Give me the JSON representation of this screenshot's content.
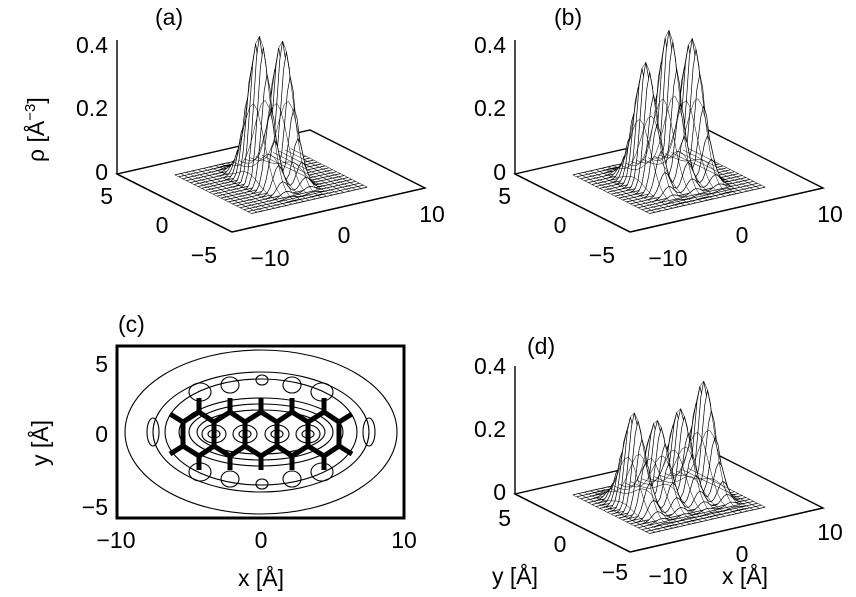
{
  "panels": {
    "a": {
      "label": "(a)"
    },
    "b": {
      "label": "(b)"
    },
    "c": {
      "label": "(c)"
    },
    "d": {
      "label": "(d)"
    }
  },
  "axes": {
    "rho_label": "ρ [Å",
    "rho_exp": "−3",
    "rho_close": "]",
    "x_label": "x [Å]",
    "y_label": "y [Å]"
  },
  "ticks": {
    "z_top": [
      "0.4",
      "0.2",
      "0"
    ],
    "y3d": [
      "5",
      "0",
      "−5"
    ],
    "x3d": [
      "−10",
      "0",
      "10"
    ],
    "c_y": [
      "5",
      "0",
      "−5"
    ],
    "c_x": [
      "−10",
      "0",
      "10"
    ]
  },
  "chart_data": [
    {
      "panel": "a",
      "type": "surface",
      "title": "",
      "zlabel": "ρ [Å−3]",
      "xlim": [
        -10,
        10
      ],
      "ylim": [
        -6,
        6
      ],
      "zlim": [
        0,
        0.4
      ],
      "peaks": [
        {
          "x": -1.2,
          "y": 0,
          "z": 0.44
        },
        {
          "x": 1.2,
          "y": 0,
          "z": 0.41
        }
      ]
    },
    {
      "panel": "b",
      "type": "surface",
      "title": "",
      "xlim": [
        -10,
        10
      ],
      "ylim": [
        -6,
        6
      ],
      "zlim": [
        0,
        0.4
      ],
      "peaks": [
        {
          "x": -2.4,
          "y": 0,
          "z": 0.37
        },
        {
          "x": 0,
          "y": 0,
          "z": 0.45
        },
        {
          "x": 2.4,
          "y": 0,
          "z": 0.41
        }
      ]
    },
    {
      "panel": "c",
      "type": "contour",
      "title": "",
      "xlabel": "x [Å]",
      "ylabel": "y [Å]",
      "xlim": [
        -10,
        10
      ],
      "ylim": [
        -6,
        6
      ]
    },
    {
      "panel": "d",
      "type": "surface",
      "title": "",
      "xlabel": "x [Å]",
      "ylabel": "y [Å]",
      "xlim": [
        -10,
        10
      ],
      "ylim": [
        -6,
        6
      ],
      "zlim": [
        0,
        0.4
      ],
      "peaks": [
        {
          "x": -3.6,
          "y": 0,
          "z": 0.3
        },
        {
          "x": -1.2,
          "y": 0,
          "z": 0.26
        },
        {
          "x": 1.2,
          "y": 0,
          "z": 0.28
        },
        {
          "x": 3.6,
          "y": 0,
          "z": 0.35
        }
      ]
    }
  ]
}
